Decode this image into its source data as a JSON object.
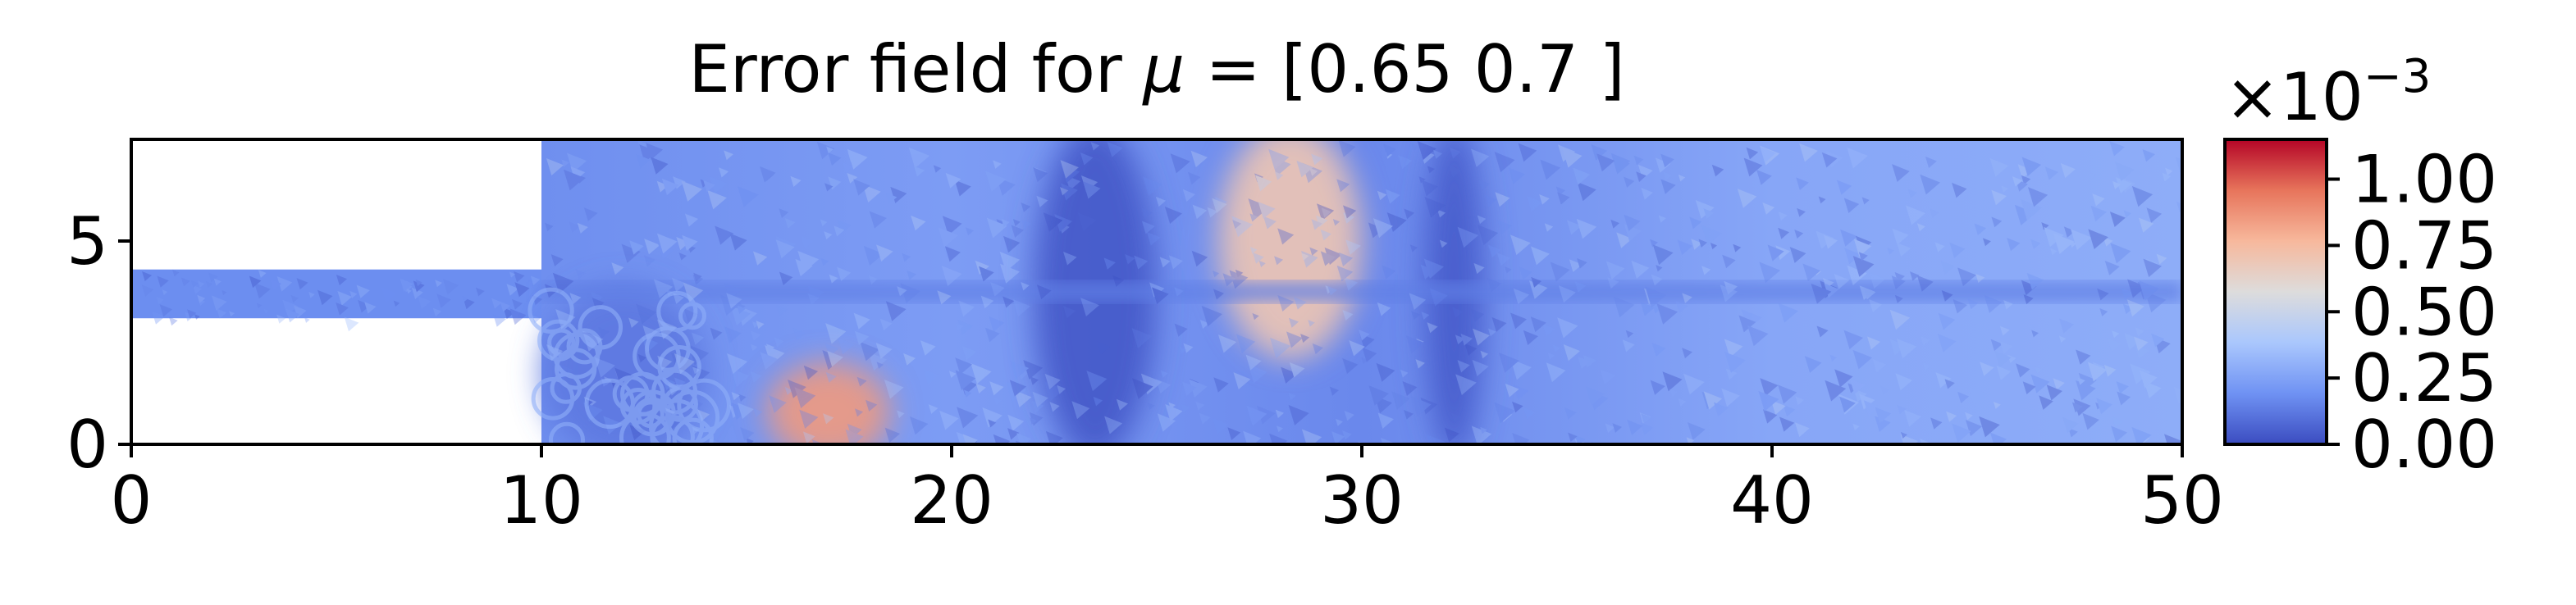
{
  "chart_data": {
    "type": "heatmap",
    "title_prefix": "Error field for ",
    "title_mu": "μ",
    "title_suffix": " = [0.65 0.7 ]",
    "xlim": [
      0,
      50
    ],
    "ylim": [
      0,
      7.5
    ],
    "xticks": [
      0,
      10,
      20,
      30,
      40,
      50
    ],
    "xtick_labels": [
      "0",
      "10",
      "20",
      "30",
      "40",
      "50"
    ],
    "yticks": [
      0,
      5
    ],
    "ytick_labels": [
      "0",
      "5"
    ],
    "colormap": "coolwarm",
    "colormap_stops": [
      "#3b4cc0",
      "#6f92f3",
      "#aac7fd",
      "#dddcdc",
      "#f7b89c",
      "#e7745b",
      "#b40426"
    ],
    "domain": {
      "inlet_channel": {
        "x": [
          0,
          10
        ],
        "y": [
          3.1,
          4.3
        ]
      },
      "main_channel": {
        "x": [
          10,
          50
        ],
        "y": [
          0,
          7.5
        ]
      }
    },
    "colorbar": {
      "offset_base": "×10",
      "offset_exponent": "−3",
      "min": 0.0,
      "max": 1.15,
      "ticks": [
        0.0,
        0.25,
        0.5,
        0.75,
        1.0
      ],
      "tick_labels": [
        "0.00",
        "0.25",
        "0.50",
        "0.75",
        "1.00"
      ]
    },
    "field_features": [
      {
        "x": [
          10,
          14
        ],
        "y": [
          0,
          3.5
        ],
        "level": 0.12,
        "note": "cellular pattern"
      },
      {
        "x": [
          15.5,
          18.5
        ],
        "y": [
          0,
          1.6
        ],
        "level": 0.85
      },
      {
        "x": [
          22,
          25
        ],
        "y": [
          0,
          7.5
        ],
        "level": 0.03
      },
      {
        "x": [
          26.5,
          30
        ],
        "y": [
          2.5,
          7.5
        ],
        "level": 0.7
      },
      {
        "x": [
          31.5,
          33
        ],
        "y": [
          0,
          7.5
        ],
        "level": 0.04
      }
    ]
  }
}
